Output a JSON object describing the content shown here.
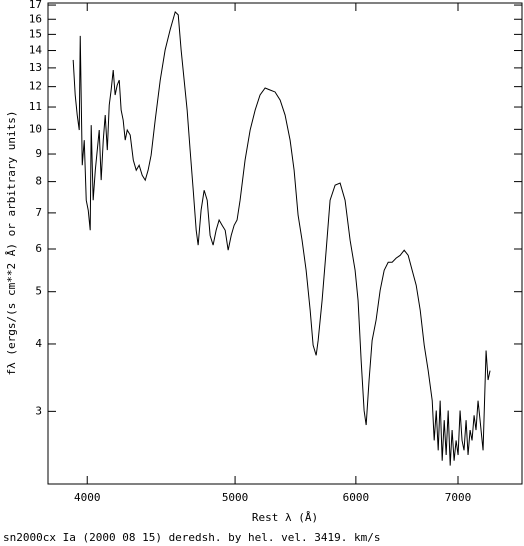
{
  "chart_data": {
    "type": "line",
    "x_label": "Rest λ (Å)",
    "y_label": "fλ (ergs/(s cm**2 Å) or arbitrary units)",
    "caption": "sn2000cx Ia (2000 08 15) deredsh. by hel. vel.  3419. km/s",
    "xscale": "log",
    "yscale": "log",
    "xlim": [
      3770,
      7710
    ],
    "ylim": [
      2.2,
      17.15
    ],
    "xticks": [
      4000,
      5000,
      6000,
      7000
    ],
    "yticks": [
      3,
      4,
      5,
      6,
      7,
      8,
      9,
      10,
      11,
      12,
      13,
      14,
      15,
      16,
      17
    ],
    "color": "#000000",
    "x": [
      3916,
      3928,
      3940,
      3952,
      3958,
      3970,
      3982,
      3994,
      4006,
      4018,
      4024,
      4036,
      4049,
      4061,
      4073,
      4085,
      4098,
      4110,
      4123,
      4135,
      4147,
      4160,
      4172,
      4185,
      4198,
      4210,
      4223,
      4236,
      4249,
      4268,
      4288,
      4307,
      4326,
      4346,
      4366,
      4385,
      4405,
      4432,
      4466,
      4499,
      4533,
      4568,
      4589,
      4609,
      4630,
      4651,
      4672,
      4694,
      4715,
      4729,
      4750,
      4772,
      4794,
      4815,
      4837,
      4859,
      4881,
      4903,
      4926,
      4948,
      4971,
      4993,
      5015,
      5038,
      5076,
      5115,
      5154,
      5192,
      5232,
      5271,
      5311,
      5352,
      5392,
      5433,
      5466,
      5499,
      5532,
      5566,
      5600,
      5625,
      5651,
      5668,
      5702,
      5737,
      5771,
      5815,
      5859,
      5903,
      5948,
      5993,
      6020,
      6048,
      6075,
      6094,
      6121,
      6149,
      6186,
      6224,
      6262,
      6300,
      6338,
      6376,
      6415,
      6454,
      6493,
      6532,
      6572,
      6612,
      6652,
      6692,
      6733,
      6753,
      6774,
      6794,
      6814,
      6835,
      6856,
      6876,
      6897,
      6918,
      6938,
      6959,
      6980,
      7001,
      7022,
      7043,
      7064,
      7086,
      7107,
      7129,
      7150,
      7172,
      7193,
      7215,
      7237,
      7270,
      7303,
      7325,
      7347
    ],
    "values": [
      13.45,
      11.58,
      10.63,
      9.97,
      14.9,
      8.58,
      9.55,
      7.39,
      7.08,
      6.5,
      10.18,
      7.39,
      8.4,
      9.15,
      9.97,
      8.05,
      9.55,
      10.63,
      9.15,
      11.09,
      11.83,
      12.88,
      11.58,
      12.08,
      12.34,
      10.86,
      10.4,
      9.55,
      9.97,
      9.76,
      8.77,
      8.4,
      8.58,
      8.22,
      8.05,
      8.4,
      8.96,
      10.4,
      12.34,
      14.03,
      15.29,
      16.51,
      16.3,
      14.03,
      12.34,
      10.86,
      9.15,
      7.71,
      6.5,
      6.1,
      7.08,
      7.71,
      7.39,
      6.36,
      6.1,
      6.5,
      6.79,
      6.64,
      6.5,
      5.97,
      6.36,
      6.64,
      6.79,
      7.39,
      8.77,
      9.97,
      10.86,
      11.58,
      11.93,
      11.83,
      11.73,
      11.33,
      10.63,
      9.55,
      8.4,
      6.93,
      6.23,
      5.48,
      4.62,
      3.98,
      3.81,
      4.06,
      4.82,
      5.97,
      7.39,
      7.88,
      7.95,
      7.39,
      6.23,
      5.48,
      4.82,
      3.73,
      3.01,
      2.83,
      3.43,
      4.06,
      4.43,
      5.03,
      5.48,
      5.67,
      5.67,
      5.77,
      5.84,
      5.97,
      5.84,
      5.48,
      5.14,
      4.62,
      3.98,
      3.57,
      3.14,
      2.65,
      3.01,
      2.54,
      3.14,
      2.43,
      2.89,
      2.49,
      3.01,
      2.38,
      2.77,
      2.43,
      2.65,
      2.49,
      3.01,
      2.65,
      2.54,
      2.89,
      2.49,
      2.77,
      2.65,
      2.95,
      2.77,
      3.14,
      2.89,
      2.54,
      3.89,
      3.43,
      3.57
    ]
  }
}
